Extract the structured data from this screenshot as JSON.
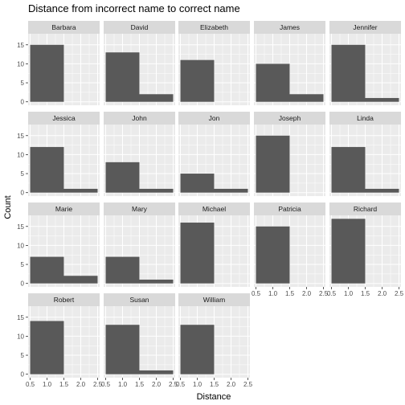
{
  "chart_data": {
    "type": "bar",
    "title": "Distance from incorrect name to correct name",
    "xlabel": "Distance",
    "ylabel": "Count",
    "xlim": [
      0.5,
      2.5
    ],
    "ylim": [
      0,
      17
    ],
    "x_ticks": [
      "0.5",
      "1.0",
      "1.5",
      "2.0",
      "2.5"
    ],
    "y_ticks": [
      "0",
      "5",
      "10",
      "15"
    ],
    "bins": [
      {
        "from": 0.5,
        "to": 1.5
      },
      {
        "from": 1.5,
        "to": 2.5
      }
    ],
    "colors": {
      "panel_background": "#ebebeb",
      "grid": "#ffffff",
      "strip_background": "#d9d9d9",
      "bar_fill": "#595959"
    },
    "facets": [
      {
        "name": "Barbara",
        "values": [
          15,
          0
        ]
      },
      {
        "name": "David",
        "values": [
          13,
          2
        ]
      },
      {
        "name": "Elizabeth",
        "values": [
          11,
          0
        ]
      },
      {
        "name": "James",
        "values": [
          10,
          2
        ]
      },
      {
        "name": "Jennifer",
        "values": [
          15,
          1
        ]
      },
      {
        "name": "Jessica",
        "values": [
          12,
          1
        ]
      },
      {
        "name": "John",
        "values": [
          8,
          1
        ]
      },
      {
        "name": "Jon",
        "values": [
          5,
          1
        ]
      },
      {
        "name": "Joseph",
        "values": [
          15,
          0
        ]
      },
      {
        "name": "Linda",
        "values": [
          12,
          1
        ]
      },
      {
        "name": "Marie",
        "values": [
          7,
          2
        ]
      },
      {
        "name": "Mary",
        "values": [
          7,
          1
        ]
      },
      {
        "name": "Michael",
        "values": [
          16,
          0
        ]
      },
      {
        "name": "Patricia",
        "values": [
          15,
          0
        ]
      },
      {
        "name": "Richard",
        "values": [
          17,
          0
        ]
      },
      {
        "name": "Robert",
        "values": [
          14,
          0
        ]
      },
      {
        "name": "Susan",
        "values": [
          13,
          1
        ]
      },
      {
        "name": "William",
        "values": [
          13,
          0
        ]
      }
    ]
  }
}
